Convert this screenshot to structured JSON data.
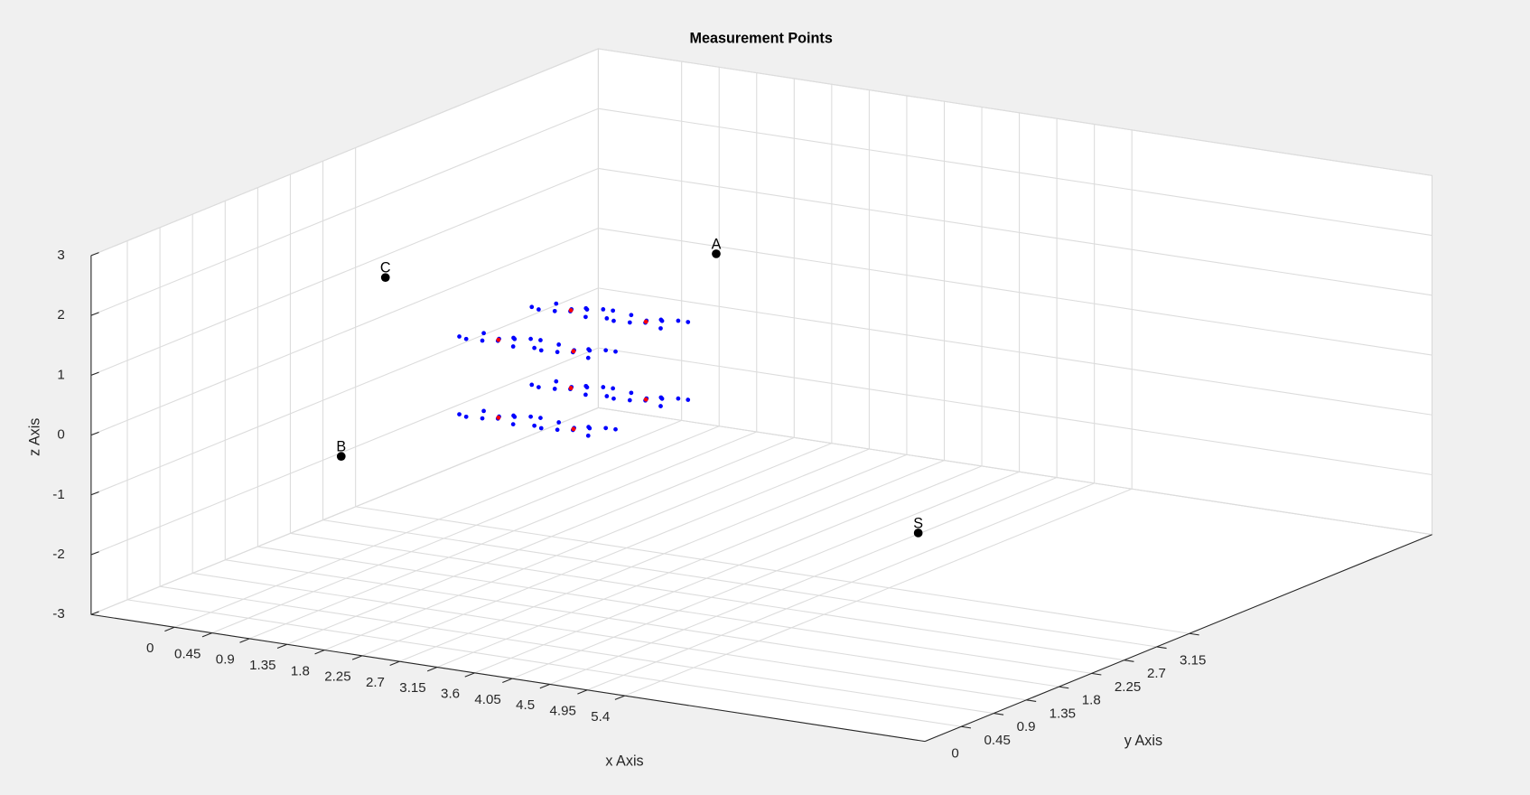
{
  "chart_data": {
    "type": "scatter3d",
    "title": "Measurement Points",
    "xlabel": "x Axis",
    "ylabel": "y Axis",
    "zlabel": "z Axis",
    "xlim": [
      -1,
      9
    ],
    "ylim": [
      -0.5,
      6.5
    ],
    "zlim": [
      -3,
      3
    ],
    "xticks": [
      0,
      0.45,
      0.9,
      1.35,
      1.8,
      2.25,
      2.7,
      3.15,
      3.6,
      4.05,
      4.5,
      4.95,
      5.4
    ],
    "yticks": [
      0,
      0.45,
      0.9,
      1.35,
      1.8,
      2.25,
      2.7,
      3.15
    ],
    "zticks": [
      -3,
      -2,
      -1,
      0,
      1,
      2,
      3
    ],
    "grid": true,
    "series": [
      {
        "color": "#0000ff",
        "x": [
          1.8,
          1.95,
          1.65,
          2.1,
          1.5,
          1.88,
          1.72,
          2.02,
          1.58,
          2.2,
          1.4,
          1.85
        ],
        "y": [
          2.9,
          2.95,
          2.85,
          3.0,
          2.8,
          2.8,
          3.0,
          2.85,
          2.95,
          3.02,
          2.82,
          3.05
        ],
        "z": [
          1,
          1.02,
          0.98,
          1.03,
          1,
          1.05,
          0.95,
          0.96,
          1.04,
          1.02,
          1.01,
          0.97
        ]
      },
      {
        "color": "#0000ff",
        "x": [
          2.7,
          2.85,
          2.55,
          3.0,
          2.4,
          2.78,
          2.62,
          2.92,
          2.48,
          3.1,
          2.3,
          2.75
        ],
        "y": [
          2.9,
          2.95,
          2.85,
          3.0,
          2.8,
          2.8,
          3.0,
          2.85,
          2.95,
          3.02,
          2.82,
          3.05
        ],
        "z": [
          1,
          1.02,
          0.98,
          1.03,
          1,
          1.05,
          0.95,
          0.96,
          1.04,
          1.02,
          1.01,
          0.97
        ]
      },
      {
        "color": "#0000ff",
        "x": [
          1.8,
          1.95,
          1.65,
          2.1,
          1.5,
          1.88,
          1.72,
          2.02,
          1.58,
          2.2,
          1.4,
          1.85
        ],
        "y": [
          1.9,
          1.95,
          1.85,
          2.0,
          1.8,
          1.8,
          2.0,
          1.85,
          1.95,
          2.02,
          1.82,
          2.05
        ],
        "z": [
          1,
          1.02,
          0.98,
          1.03,
          1,
          1.05,
          0.95,
          0.96,
          1.04,
          1.02,
          1.01,
          0.97
        ]
      },
      {
        "color": "#0000ff",
        "x": [
          2.7,
          2.85,
          2.55,
          3.0,
          2.4,
          2.78,
          2.62,
          2.92,
          2.48,
          3.1,
          2.3,
          2.75
        ],
        "y": [
          1.9,
          1.95,
          1.85,
          2.0,
          1.8,
          1.8,
          2.0,
          1.85,
          1.95,
          2.02,
          1.82,
          2.05
        ],
        "z": [
          1,
          1.02,
          0.98,
          1.03,
          1,
          1.05,
          0.95,
          0.96,
          1.04,
          1.02,
          1.01,
          0.97
        ]
      },
      {
        "color": "#0000ff",
        "x": [
          1.8,
          1.95,
          1.65,
          2.1,
          1.5,
          1.88,
          1.72,
          2.02,
          1.58,
          2.2,
          1.4,
          1.85
        ],
        "y": [
          2.9,
          2.95,
          2.85,
          3.0,
          2.8,
          2.8,
          3.0,
          2.85,
          2.95,
          3.02,
          2.82,
          3.05
        ],
        "z": [
          -0.3,
          -0.28,
          -0.32,
          -0.27,
          -0.3,
          -0.25,
          -0.35,
          -0.34,
          -0.26,
          -0.28,
          -0.29,
          -0.33
        ]
      },
      {
        "color": "#0000ff",
        "x": [
          2.7,
          2.85,
          2.55,
          3.0,
          2.4,
          2.78,
          2.62,
          2.92,
          2.48,
          3.1,
          2.3,
          2.75
        ],
        "y": [
          2.9,
          2.95,
          2.85,
          3.0,
          2.8,
          2.8,
          3.0,
          2.85,
          2.95,
          3.02,
          2.82,
          3.05
        ],
        "z": [
          -0.3,
          -0.28,
          -0.32,
          -0.27,
          -0.3,
          -0.25,
          -0.35,
          -0.34,
          -0.26,
          -0.28,
          -0.29,
          -0.33
        ]
      },
      {
        "color": "#0000ff",
        "x": [
          1.8,
          1.95,
          1.65,
          2.1,
          1.5,
          1.88,
          1.72,
          2.02,
          1.58,
          2.2,
          1.4,
          1.85
        ],
        "y": [
          1.9,
          1.95,
          1.85,
          2.0,
          1.8,
          1.8,
          2.0,
          1.85,
          1.95,
          2.02,
          1.82,
          2.05
        ],
        "z": [
          -0.3,
          -0.28,
          -0.32,
          -0.27,
          -0.3,
          -0.25,
          -0.35,
          -0.34,
          -0.26,
          -0.28,
          -0.29,
          -0.33
        ]
      },
      {
        "color": "#0000ff",
        "x": [
          2.7,
          2.85,
          2.55,
          3.0,
          2.4,
          2.78,
          2.62,
          2.92,
          2.48,
          3.1,
          2.3,
          2.75
        ],
        "y": [
          1.9,
          1.95,
          1.85,
          2.0,
          1.8,
          1.8,
          2.0,
          1.85,
          1.95,
          2.02,
          1.82,
          2.05
        ],
        "z": [
          -0.3,
          -0.28,
          -0.32,
          -0.27,
          -0.3,
          -0.25,
          -0.35,
          -0.34,
          -0.26,
          -0.28,
          -0.29,
          -0.33
        ]
      },
      {
        "color": "#ff0000",
        "x": [
          1.8,
          2.7,
          1.8,
          2.7,
          1.8,
          2.7,
          1.8,
          2.7
        ],
        "y": [
          2.9,
          2.9,
          1.9,
          1.9,
          2.9,
          2.9,
          1.9,
          1.9
        ],
        "z": [
          1,
          1,
          1,
          1,
          -0.3,
          -0.3,
          -0.3,
          -0.3
        ]
      },
      {
        "color": "#000000",
        "labels": [
          "A",
          "B",
          "C",
          "S"
        ],
        "x": [
          2.5,
          1.0,
          1.4,
          6.4
        ],
        "y": [
          4.1,
          0.65,
          0.8,
          2.4
        ],
        "z": [
          1.5,
          -0.5,
          2.5,
          -1.5
        ]
      }
    ]
  }
}
